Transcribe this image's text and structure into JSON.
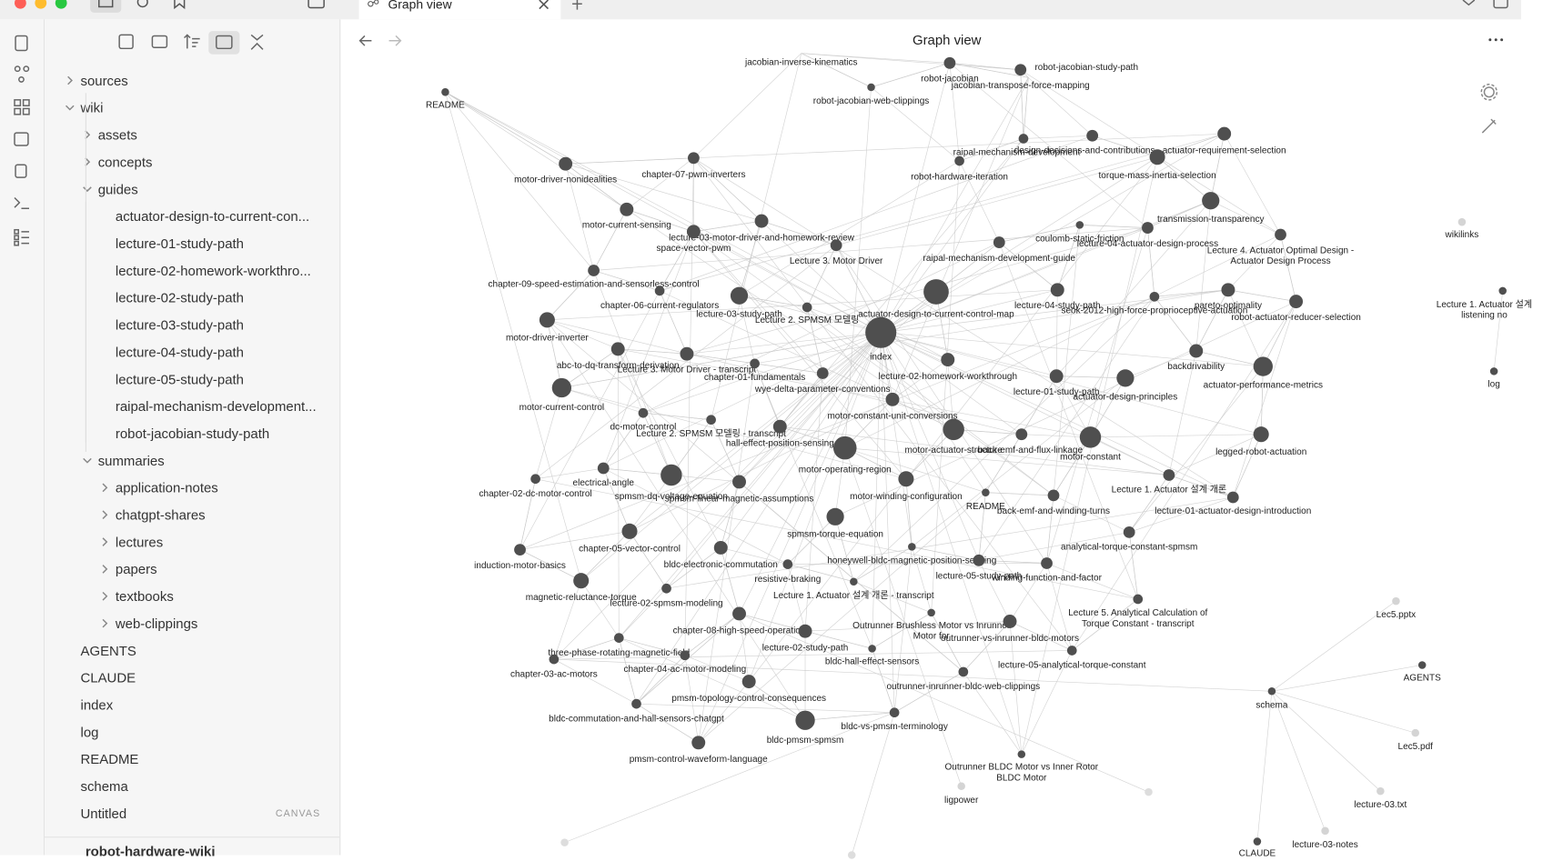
{
  "tab": {
    "title": "Graph view"
  },
  "view_title": "Graph view",
  "file_tree": [
    {
      "label": "sources",
      "depth": 0,
      "folder": true,
      "open": false
    },
    {
      "label": "wiki",
      "depth": 0,
      "folder": true,
      "open": true
    },
    {
      "label": "assets",
      "depth": 1,
      "folder": true,
      "open": false
    },
    {
      "label": "concepts",
      "depth": 1,
      "folder": true,
      "open": false
    },
    {
      "label": "guides",
      "depth": 1,
      "folder": true,
      "open": true
    },
    {
      "label": "actuator-design-to-current-con...",
      "depth": 2,
      "folder": false
    },
    {
      "label": "lecture-01-study-path",
      "depth": 2,
      "folder": false
    },
    {
      "label": "lecture-02-homework-workthro...",
      "depth": 2,
      "folder": false
    },
    {
      "label": "lecture-02-study-path",
      "depth": 2,
      "folder": false
    },
    {
      "label": "lecture-03-study-path",
      "depth": 2,
      "folder": false
    },
    {
      "label": "lecture-04-study-path",
      "depth": 2,
      "folder": false
    },
    {
      "label": "lecture-05-study-path",
      "depth": 2,
      "folder": false
    },
    {
      "label": "raipal-mechanism-development...",
      "depth": 2,
      "folder": false
    },
    {
      "label": "robot-jacobian-study-path",
      "depth": 2,
      "folder": false
    },
    {
      "label": "summaries",
      "depth": 1,
      "folder": true,
      "open": true
    },
    {
      "label": "application-notes",
      "depth": 2,
      "folder": true,
      "open": false
    },
    {
      "label": "chatgpt-shares",
      "depth": 2,
      "folder": true,
      "open": false
    },
    {
      "label": "lectures",
      "depth": 2,
      "folder": true,
      "open": false
    },
    {
      "label": "papers",
      "depth": 2,
      "folder": true,
      "open": false
    },
    {
      "label": "textbooks",
      "depth": 2,
      "folder": true,
      "open": false
    },
    {
      "label": "web-clippings",
      "depth": 2,
      "folder": true,
      "open": false
    },
    {
      "label": "AGENTS",
      "depth": 0,
      "folder": false
    },
    {
      "label": "CLAUDE",
      "depth": 0,
      "folder": false
    },
    {
      "label": "index",
      "depth": 0,
      "folder": false
    },
    {
      "label": "log",
      "depth": 0,
      "folder": false
    },
    {
      "label": "README",
      "depth": 0,
      "folder": false
    },
    {
      "label": "schema",
      "depth": 0,
      "folder": false
    },
    {
      "label": "Untitled",
      "depth": 0,
      "folder": false,
      "badge": "CANVAS"
    }
  ],
  "vault_name": "robot-hardware-wiki",
  "graph": {
    "nodes": [
      {
        "lines": [
          "README"
        ]
      },
      {
        "lines": [
          "jacobian-inverse-kinematics"
        ]
      },
      {
        "lines": [
          "robot-jacobian"
        ]
      },
      {
        "lines": [
          "robot-jacobian-study-path"
        ]
      },
      {
        "lines": [
          "jacobian-transpose-force-mapping"
        ]
      },
      {
        "lines": [
          "robot-jacobian-web-clippings"
        ]
      },
      {
        "lines": [
          "raipal-mechanism-development"
        ]
      },
      {
        "lines": [
          "design-decisions-and-contributions"
        ]
      },
      {
        "lines": [
          "actuator-requirement-selection"
        ]
      },
      {
        "lines": [
          "robot-hardware-iteration"
        ]
      },
      {
        "lines": [
          "torque-mass-inertia-selection"
        ]
      },
      {
        "lines": [
          "motor-driver-nonidealities"
        ]
      },
      {
        "lines": [
          "chapter-07-pwm-inverters"
        ]
      },
      {
        "lines": [
          "motor-current-sensing"
        ]
      },
      {
        "lines": [
          "transmission-transparency"
        ]
      },
      {
        "lines": [
          "lecture-03-motor-driver-and-homework-review"
        ]
      },
      {
        "lines": [
          "space-vector-pwm"
        ]
      },
      {
        "lines": [
          "coulomb-static-friction"
        ]
      },
      {
        "lines": [
          "lecture-04-actuator-design-process"
        ]
      },
      {
        "lines": [
          "Lecture 4. Actuator Optimal Design -",
          "Actuator Design Process"
        ]
      },
      {
        "lines": [
          "Lecture 3. Motor Driver"
        ]
      },
      {
        "lines": [
          "raipal-mechanism-development-guide"
        ]
      },
      {
        "lines": [
          "wikilinks"
        ]
      },
      {
        "lines": [
          "chapter-09-speed-estimation-and-sensorless-control"
        ]
      },
      {
        "lines": [
          "lecture-04-study-path"
        ]
      },
      {
        "lines": [
          "seok-2012-high-force-proprioceptive-actuation"
        ]
      },
      {
        "lines": [
          "pareto-optimality"
        ]
      },
      {
        "lines": [
          "robot-actuator-reducer-selection"
        ]
      },
      {
        "lines": [
          "Lecture 1. Actuator 설계",
          "listening no"
        ]
      },
      {
        "lines": [
          "chapter-06-current-regulators"
        ]
      },
      {
        "lines": [
          "lecture-03-study-path"
        ]
      },
      {
        "lines": [
          "actuator-design-to-current-control-map"
        ]
      },
      {
        "lines": [
          "Lecture 2. SPMSM 모델링"
        ]
      },
      {
        "lines": [
          "motor-driver-inverter"
        ]
      },
      {
        "lines": [
          "index"
        ]
      },
      {
        "lines": [
          "abc-to-dq-transform-derivation"
        ]
      },
      {
        "lines": [
          "Lecture 3. Motor Driver - transcript"
        ]
      },
      {
        "lines": [
          "chapter-01-fundamentals"
        ]
      },
      {
        "lines": [
          "lecture-02-homework-workthrough"
        ]
      },
      {
        "lines": [
          "backdrivability"
        ]
      },
      {
        "lines": [
          "actuator-performance-metrics"
        ]
      },
      {
        "lines": [
          "wye-delta-parameter-conventions"
        ]
      },
      {
        "lines": [
          "lecture-01-study-path"
        ]
      },
      {
        "lines": [
          "actuator-design-principles"
        ]
      },
      {
        "lines": [
          "motor-current-control"
        ]
      },
      {
        "lines": [
          "motor-constant-unit-conversions"
        ]
      },
      {
        "lines": [
          "dc-motor-control"
        ]
      },
      {
        "lines": [
          "Lecture 2. SPMSM 모델링 - transcript"
        ]
      },
      {
        "lines": [
          "hall-effect-position-sensing"
        ]
      },
      {
        "lines": [
          "motor-actuator-structure"
        ]
      },
      {
        "lines": [
          "back-emf-and-flux-linkage"
        ]
      },
      {
        "lines": [
          "motor-constant"
        ]
      },
      {
        "lines": [
          "legged-robot-actuation"
        ]
      },
      {
        "lines": [
          "motor-operating-region"
        ]
      },
      {
        "lines": [
          "electrical-angle"
        ]
      },
      {
        "lines": [
          "spmsm-dq-voltage-equation"
        ]
      },
      {
        "lines": [
          "Lecture 1. Actuator 설계 개론"
        ]
      },
      {
        "lines": [
          "chapter-02-dc-motor-control"
        ]
      },
      {
        "lines": [
          "spmsm-linear-magnetic-assumptions"
        ]
      },
      {
        "lines": [
          "motor-winding-configuration"
        ]
      },
      {
        "lines": [
          "README"
        ]
      },
      {
        "lines": [
          "back-emf-and-winding-turns"
        ]
      },
      {
        "lines": [
          "lecture-01-actuator-design-introduction"
        ]
      },
      {
        "lines": [
          "spmsm-torque-equation"
        ]
      },
      {
        "lines": [
          "chapter-05-vector-control"
        ]
      },
      {
        "lines": [
          "analytical-torque-constant-spmsm"
        ]
      },
      {
        "lines": [
          "honeywell-bldc-magnetic-position-sensing"
        ]
      },
      {
        "lines": [
          "induction-motor-basics"
        ]
      },
      {
        "lines": [
          "bldc-electronic-commutation"
        ]
      },
      {
        "lines": [
          "resistive-braking"
        ]
      },
      {
        "lines": [
          "lecture-05-study-path"
        ]
      },
      {
        "lines": [
          "winding-function-and-factor"
        ]
      },
      {
        "lines": [
          "magnetic-reluctance-torque"
        ]
      },
      {
        "lines": [
          "Lecture 1. Actuator 설계 개론 - transcript"
        ]
      },
      {
        "lines": [
          "lecture-02-spmsm-modeling"
        ]
      },
      {
        "lines": [
          "Lecture 5. Analytical Calculation of",
          "Torque Constant - transcript"
        ]
      },
      {
        "lines": [
          "Lec5.pptx"
        ]
      },
      {
        "lines": [
          "Outrunner Brushless Motor vs Inrunner",
          "Motor for"
        ]
      },
      {
        "lines": [
          "chapter-08-high-speed-operation"
        ]
      },
      {
        "lines": [
          "outrunner-vs-inrunner-bldc-motors"
        ]
      },
      {
        "lines": [
          "three-phase-rotating-magnetic-field"
        ]
      },
      {
        "lines": [
          "lecture-02-study-path"
        ]
      },
      {
        "lines": [
          "bldc-hall-effect-sensors"
        ]
      },
      {
        "lines": [
          "lecture-05-analytical-torque-constant"
        ]
      },
      {
        "lines": [
          "chapter-03-ac-motors"
        ]
      },
      {
        "lines": [
          "chapter-04-ac-motor-modeling"
        ]
      },
      {
        "lines": [
          "AGENTS"
        ]
      },
      {
        "lines": [
          "outrunner-inrunner-bldc-web-clippings"
        ]
      },
      {
        "lines": [
          "pmsm-topology-control-consequences"
        ]
      },
      {
        "lines": [
          "schema"
        ]
      },
      {
        "lines": [
          "bldc-commutation-and-hall-sensors-chatgpt"
        ]
      },
      {
        "lines": [
          "bldc-pmsm-spmsm"
        ]
      },
      {
        "lines": [
          "bldc-vs-pmsm-terminology"
        ]
      },
      {
        "lines": [
          "Lec5.pdf"
        ]
      },
      {
        "lines": [
          "pmsm-control-waveform-language"
        ]
      },
      {
        "lines": [
          "Outrunner BLDC Motor vs Inner Rotor",
          "BLDC Motor"
        ]
      },
      {
        "lines": [
          "ligpower"
        ]
      },
      {
        "lines": [
          "lecture-03.txt"
        ]
      },
      {
        "lines": [
          "lecture-03-notes"
        ]
      },
      {
        "lines": [
          "CLAUDE"
        ]
      },
      {
        "lines": [
          "log"
        ]
      }
    ]
  }
}
